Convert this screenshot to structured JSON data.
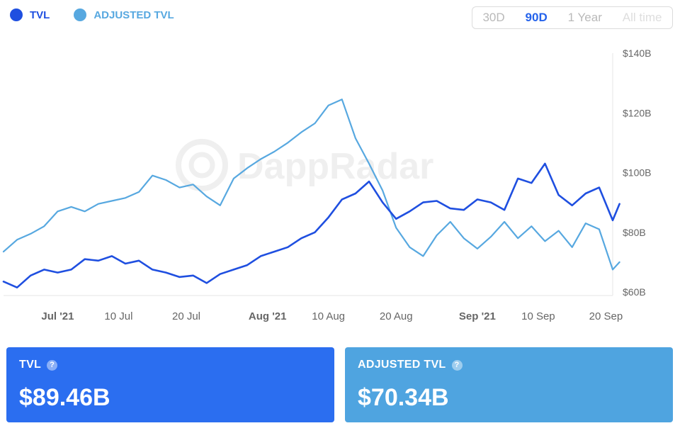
{
  "legend": [
    {
      "label": "TVL",
      "color": "#1f4fe0"
    },
    {
      "label": "ADJUSTED TVL",
      "color": "#57a8e0"
    }
  ],
  "range_buttons": [
    "30D",
    "90D",
    "1 Year",
    "All time"
  ],
  "range_selected": "90D",
  "watermark": "DappRadar",
  "cards": [
    {
      "title": "TVL",
      "value": "$89.46B",
      "color": "#2b6ef0"
    },
    {
      "title": "ADJUSTED TVL",
      "value": "$70.34B",
      "color": "#4fa4e0"
    }
  ],
  "chart_data": {
    "type": "line",
    "x_start": "2021-06-23",
    "x_end": "2021-09-21",
    "x_ticks": [
      {
        "date": "2021-07-01",
        "label": "Jul '21",
        "bold": true
      },
      {
        "date": "2021-07-10",
        "label": "10 Jul",
        "bold": false
      },
      {
        "date": "2021-07-20",
        "label": "20 Jul",
        "bold": false
      },
      {
        "date": "2021-08-01",
        "label": "Aug '21",
        "bold": true
      },
      {
        "date": "2021-08-10",
        "label": "10 Aug",
        "bold": false
      },
      {
        "date": "2021-08-20",
        "label": "20 Aug",
        "bold": false
      },
      {
        "date": "2021-09-01",
        "label": "Sep '21",
        "bold": true
      },
      {
        "date": "2021-09-10",
        "label": "10 Sep",
        "bold": false
      },
      {
        "date": "2021-09-20",
        "label": "20 Sep",
        "bold": false
      }
    ],
    "y_ticks": [
      {
        "value": 60,
        "label": "$60B"
      },
      {
        "value": 80,
        "label": "$80B"
      },
      {
        "value": 100,
        "label": "$100B"
      },
      {
        "value": 120,
        "label": "$120B"
      },
      {
        "value": 140,
        "label": "$140B"
      }
    ],
    "ylim": [
      60,
      140
    ],
    "y_axis_side": "right",
    "series": [
      {
        "name": "TVL",
        "color": "#1f4fe0",
        "points": [
          [
            "2021-06-23",
            63.5
          ],
          [
            "2021-06-25",
            61.5
          ],
          [
            "2021-06-27",
            65.5
          ],
          [
            "2021-06-29",
            67.5
          ],
          [
            "2021-07-01",
            66.5
          ],
          [
            "2021-07-03",
            67.5
          ],
          [
            "2021-07-05",
            71
          ],
          [
            "2021-07-07",
            70.5
          ],
          [
            "2021-07-09",
            72
          ],
          [
            "2021-07-11",
            69.5
          ],
          [
            "2021-07-13",
            70.5
          ],
          [
            "2021-07-15",
            67.5
          ],
          [
            "2021-07-17",
            66.5
          ],
          [
            "2021-07-19",
            65
          ],
          [
            "2021-07-21",
            65.5
          ],
          [
            "2021-07-23",
            63
          ],
          [
            "2021-07-25",
            66
          ],
          [
            "2021-07-27",
            67.5
          ],
          [
            "2021-07-29",
            69
          ],
          [
            "2021-07-31",
            72
          ],
          [
            "2021-08-02",
            73.5
          ],
          [
            "2021-08-04",
            75
          ],
          [
            "2021-08-06",
            78
          ],
          [
            "2021-08-08",
            80
          ],
          [
            "2021-08-10",
            85
          ],
          [
            "2021-08-12",
            91
          ],
          [
            "2021-08-14",
            93
          ],
          [
            "2021-08-16",
            97
          ],
          [
            "2021-08-18",
            90
          ],
          [
            "2021-08-20",
            84.5
          ],
          [
            "2021-08-22",
            87
          ],
          [
            "2021-08-24",
            90
          ],
          [
            "2021-08-26",
            90.5
          ],
          [
            "2021-08-28",
            88
          ],
          [
            "2021-08-30",
            87.5
          ],
          [
            "2021-09-01",
            91
          ],
          [
            "2021-09-03",
            90
          ],
          [
            "2021-09-05",
            87.5
          ],
          [
            "2021-09-07",
            98
          ],
          [
            "2021-09-09",
            96.5
          ],
          [
            "2021-09-11",
            103
          ],
          [
            "2021-09-13",
            92.5
          ],
          [
            "2021-09-15",
            89
          ],
          [
            "2021-09-17",
            93
          ],
          [
            "2021-09-19",
            95
          ],
          [
            "2021-09-21",
            84
          ],
          [
            "2021-09-22",
            89.5
          ]
        ]
      },
      {
        "name": "ADJUSTED TVL",
        "color": "#57a8e0",
        "points": [
          [
            "2021-06-23",
            73.5
          ],
          [
            "2021-06-25",
            77.5
          ],
          [
            "2021-06-27",
            79.5
          ],
          [
            "2021-06-29",
            82
          ],
          [
            "2021-07-01",
            87
          ],
          [
            "2021-07-03",
            88.5
          ],
          [
            "2021-07-05",
            87
          ],
          [
            "2021-07-07",
            89.5
          ],
          [
            "2021-07-09",
            90.5
          ],
          [
            "2021-07-11",
            91.5
          ],
          [
            "2021-07-13",
            93.5
          ],
          [
            "2021-07-15",
            99
          ],
          [
            "2021-07-17",
            97.5
          ],
          [
            "2021-07-19",
            95
          ],
          [
            "2021-07-21",
            96
          ],
          [
            "2021-07-23",
            92
          ],
          [
            "2021-07-25",
            89
          ],
          [
            "2021-07-27",
            98
          ],
          [
            "2021-07-29",
            101.5
          ],
          [
            "2021-07-31",
            104.5
          ],
          [
            "2021-08-02",
            107
          ],
          [
            "2021-08-04",
            110
          ],
          [
            "2021-08-06",
            113.5
          ],
          [
            "2021-08-08",
            116.5
          ],
          [
            "2021-08-10",
            122.5
          ],
          [
            "2021-08-12",
            124.5
          ],
          [
            "2021-08-14",
            111.5
          ],
          [
            "2021-08-16",
            103
          ],
          [
            "2021-08-18",
            94
          ],
          [
            "2021-08-20",
            81.5
          ],
          [
            "2021-08-22",
            75
          ],
          [
            "2021-08-24",
            72
          ],
          [
            "2021-08-26",
            79
          ],
          [
            "2021-08-28",
            83.5
          ],
          [
            "2021-08-30",
            78
          ],
          [
            "2021-09-01",
            74.5
          ],
          [
            "2021-09-03",
            78.5
          ],
          [
            "2021-09-05",
            83.5
          ],
          [
            "2021-09-07",
            78
          ],
          [
            "2021-09-09",
            82
          ],
          [
            "2021-09-11",
            77
          ],
          [
            "2021-09-13",
            80.5
          ],
          [
            "2021-09-15",
            75
          ],
          [
            "2021-09-17",
            83
          ],
          [
            "2021-09-19",
            81
          ],
          [
            "2021-09-21",
            67.5
          ],
          [
            "2021-09-22",
            70
          ]
        ]
      }
    ]
  }
}
